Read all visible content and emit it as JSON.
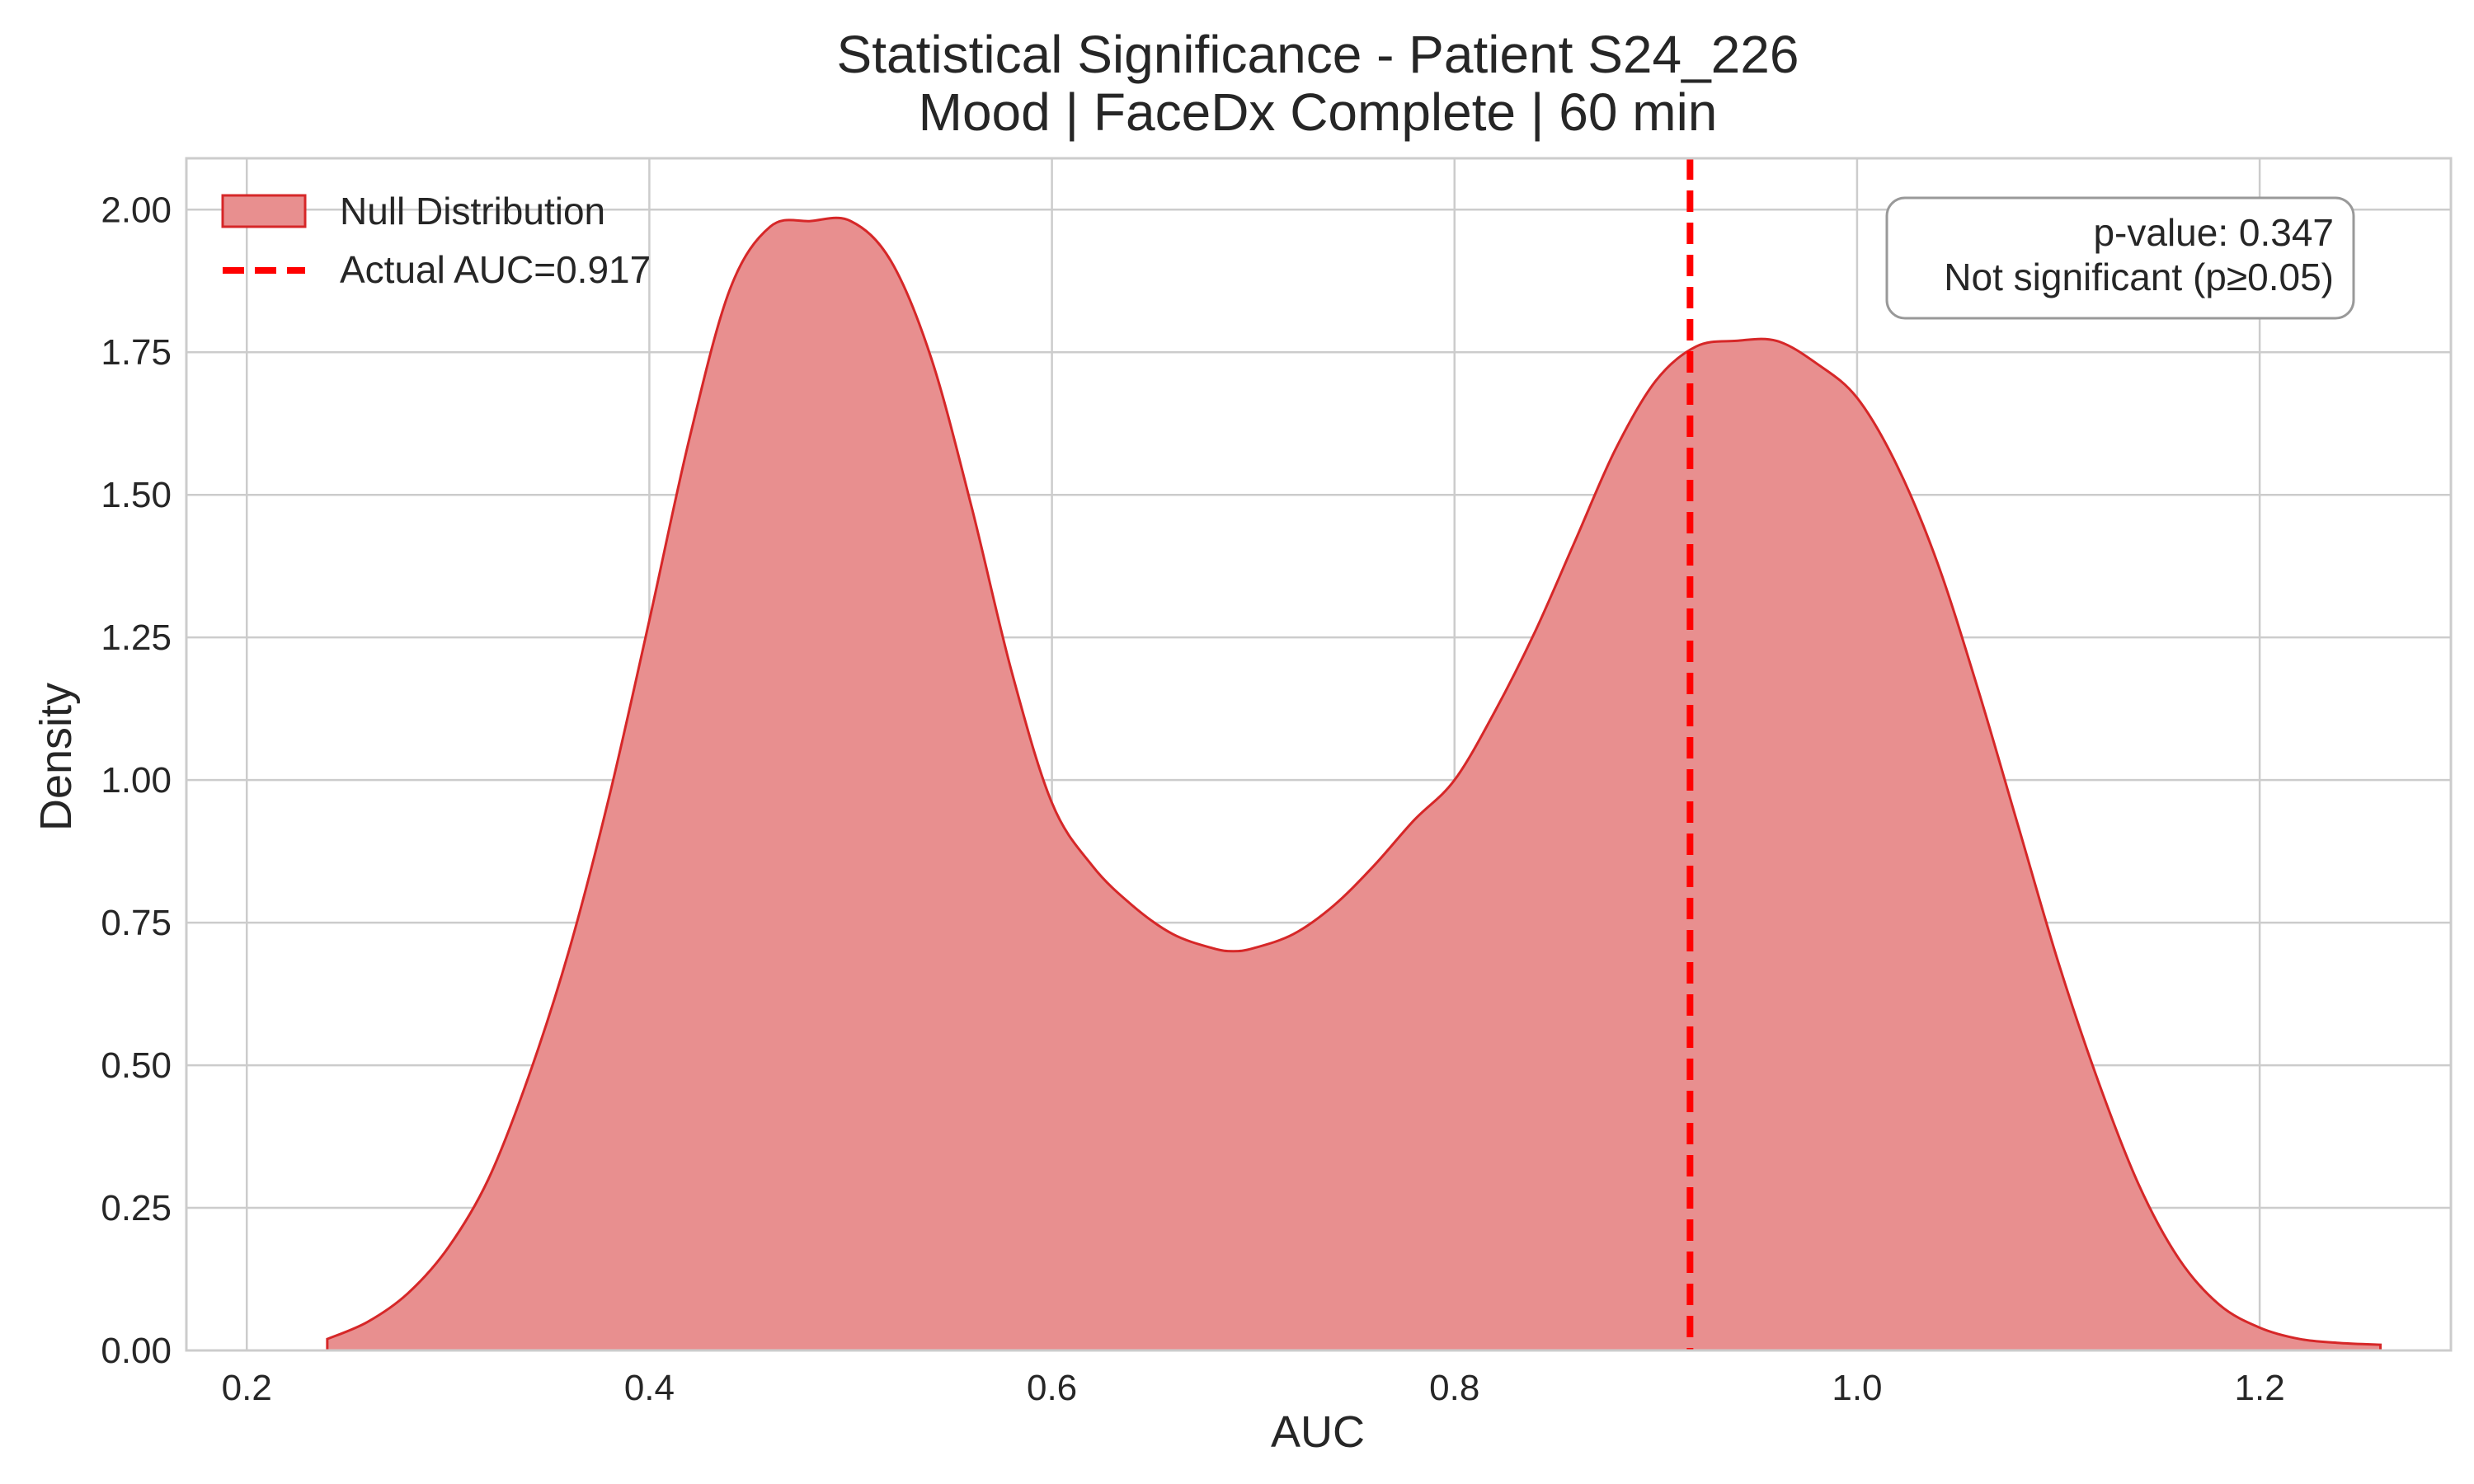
{
  "chart_data": {
    "type": "area",
    "title_line1": "Statistical Significance - Patient S24_226",
    "title_line2": "Mood | FaceDx Complete | 60 min",
    "xlabel": "AUC",
    "ylabel": "Density",
    "xlim": [
      0.17,
      1.295
    ],
    "ylim": [
      0.0,
      2.09
    ],
    "xticks": [
      0.2,
      0.4,
      0.6,
      0.8,
      1.0,
      1.2
    ],
    "xtick_labels": [
      "0.2",
      "0.4",
      "0.6",
      "0.8",
      "1.0",
      "1.2"
    ],
    "yticks": [
      0.0,
      0.25,
      0.5,
      0.75,
      1.0,
      1.25,
      1.5,
      1.75,
      2.0
    ],
    "ytick_labels": [
      "0.00",
      "0.25",
      "0.50",
      "0.75",
      "1.00",
      "1.25",
      "1.50",
      "1.75",
      "2.00"
    ],
    "grid": true,
    "legend_position": "upper-left",
    "series": [
      {
        "name": "Null Distribution",
        "fill_color": "#e88f8f",
        "line_color": "#d62728",
        "x": [
          0.24,
          0.26,
          0.28,
          0.3,
          0.32,
          0.34,
          0.36,
          0.38,
          0.4,
          0.42,
          0.44,
          0.46,
          0.48,
          0.5,
          0.52,
          0.54,
          0.56,
          0.58,
          0.6,
          0.62,
          0.64,
          0.66,
          0.68,
          0.69,
          0.7,
          0.72,
          0.74,
          0.76,
          0.78,
          0.8,
          0.82,
          0.84,
          0.86,
          0.88,
          0.9,
          0.92,
          0.94,
          0.96,
          0.98,
          1.0,
          1.02,
          1.04,
          1.06,
          1.08,
          1.1,
          1.12,
          1.14,
          1.16,
          1.18,
          1.2,
          1.22,
          1.24,
          1.26
        ],
        "y": [
          0.02,
          0.05,
          0.1,
          0.18,
          0.3,
          0.48,
          0.7,
          0.97,
          1.28,
          1.6,
          1.86,
          1.97,
          1.98,
          1.98,
          1.91,
          1.74,
          1.48,
          1.19,
          0.96,
          0.85,
          0.78,
          0.73,
          0.705,
          0.7,
          0.705,
          0.73,
          0.78,
          0.85,
          0.93,
          1.0,
          1.12,
          1.26,
          1.42,
          1.58,
          1.7,
          1.76,
          1.77,
          1.77,
          1.73,
          1.67,
          1.55,
          1.38,
          1.16,
          0.92,
          0.68,
          0.47,
          0.29,
          0.16,
          0.08,
          0.04,
          0.02,
          0.013,
          0.01
        ]
      }
    ],
    "vline": {
      "label": "Actual AUC=0.917",
      "x": 0.917,
      "color": "#ff0000"
    },
    "annotation": {
      "line1": "p-value: 0.347",
      "line2": "Not significant (p≥0.05)"
    }
  }
}
